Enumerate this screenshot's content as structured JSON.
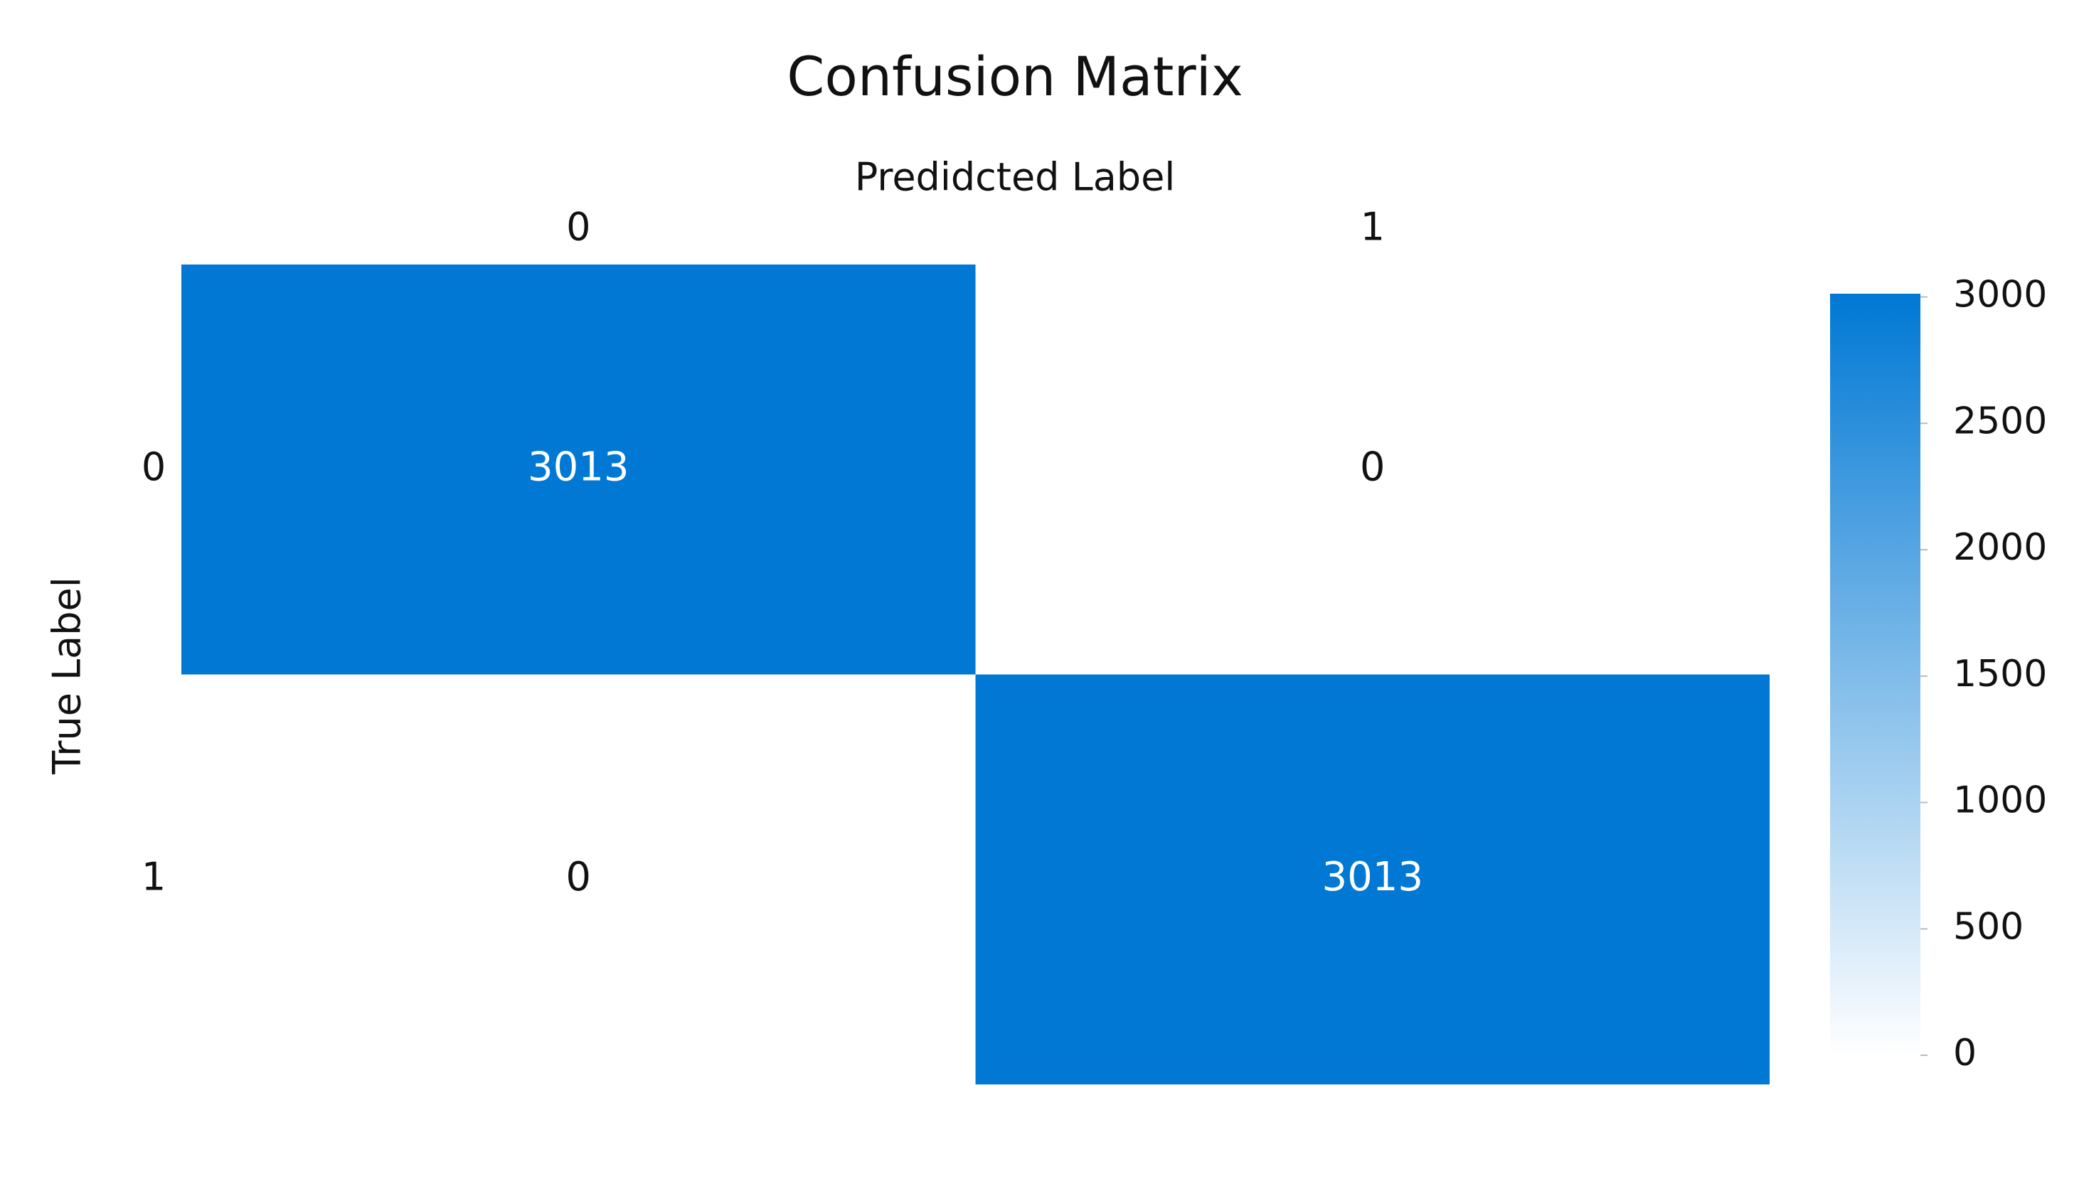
{
  "chart_data": {
    "type": "heatmap",
    "title": "Confusion Matrix",
    "x_label": "Predidcted Label",
    "y_label": "True Label",
    "x_categories": [
      "0",
      "1"
    ],
    "y_categories": [
      "0",
      "1"
    ],
    "values": [
      [
        3013,
        0
      ],
      [
        0,
        3013
      ]
    ],
    "colormap": [
      "#ffffff",
      "#0078d4"
    ],
    "clim": [
      0,
      3013
    ],
    "cticks": [
      0,
      500,
      1000,
      1500,
      2000,
      2500,
      3000
    ]
  }
}
